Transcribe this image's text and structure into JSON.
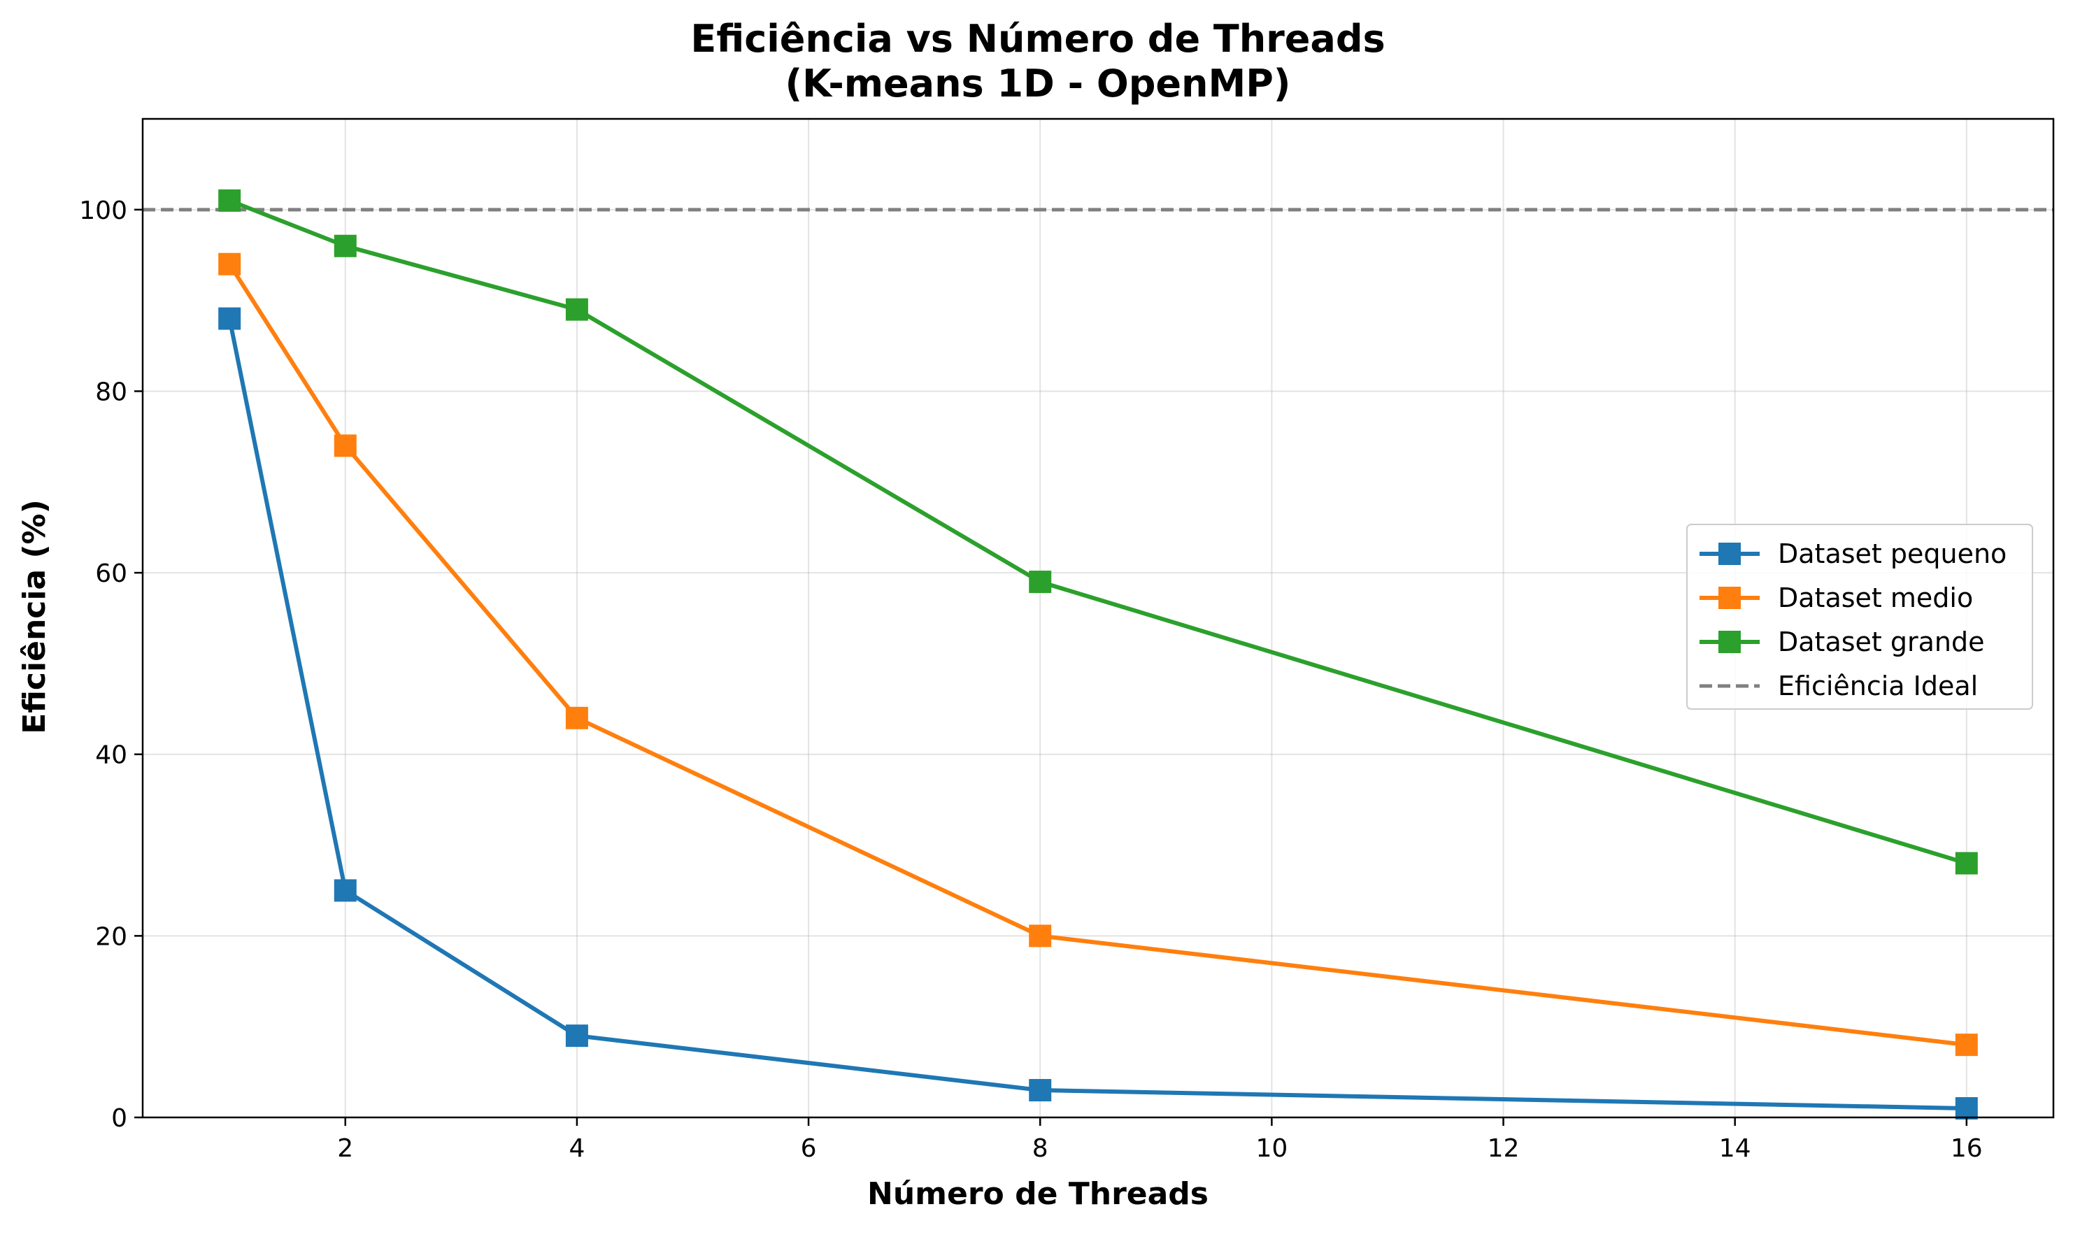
{
  "chart_data": {
    "type": "line",
    "title": [
      "Eficiência vs Número de Threads",
      "(K-means 1D - OpenMP)"
    ],
    "xlabel": "Número de Threads",
    "ylabel": "Eficiência (%)",
    "xlim": [
      0.25,
      16.75
    ],
    "ylim": [
      0,
      110
    ],
    "xticks": [
      2,
      4,
      6,
      8,
      10,
      12,
      14,
      16
    ],
    "yticks": [
      0,
      20,
      40,
      60,
      80,
      100
    ],
    "grid": true,
    "legend_position": "center-right",
    "x": [
      1,
      2,
      4,
      8,
      16
    ],
    "series": [
      {
        "name": "Dataset pequeno",
        "color": "#1f77b4",
        "marker": "square",
        "values": [
          88,
          25,
          9,
          3,
          1
        ]
      },
      {
        "name": "Dataset medio",
        "color": "#ff7f0e",
        "marker": "square",
        "values": [
          94,
          74,
          44,
          20,
          8
        ]
      },
      {
        "name": "Dataset grande",
        "color": "#2ca02c",
        "marker": "square",
        "values": [
          101,
          96,
          89,
          59,
          28
        ]
      }
    ],
    "reference_line": {
      "name": "Eficiência Ideal",
      "y": 100,
      "color": "#808080",
      "style": "dashed"
    }
  }
}
